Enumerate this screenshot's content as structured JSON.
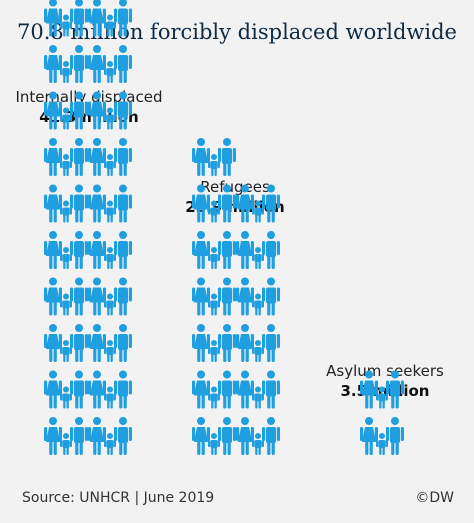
{
  "title": "70.8 million forcibly displaced worldwide",
  "icon_color": "#1f9fe0",
  "chart_data": {
    "type": "pictogram",
    "title": "70.8 million forcibly displaced worldwide",
    "unit": "million",
    "groups": [
      {
        "name": "Internally displaced",
        "value": 41.3,
        "label": "41.3 million"
      },
      {
        "name": "Refugees",
        "value": 25.9,
        "label": "25.9 million"
      },
      {
        "name": "Asylum seekers",
        "value": 3.5,
        "label": "3.5 million"
      }
    ]
  },
  "footer": {
    "source": "Source: UNHCR | June 2019",
    "credit": "©DW"
  }
}
